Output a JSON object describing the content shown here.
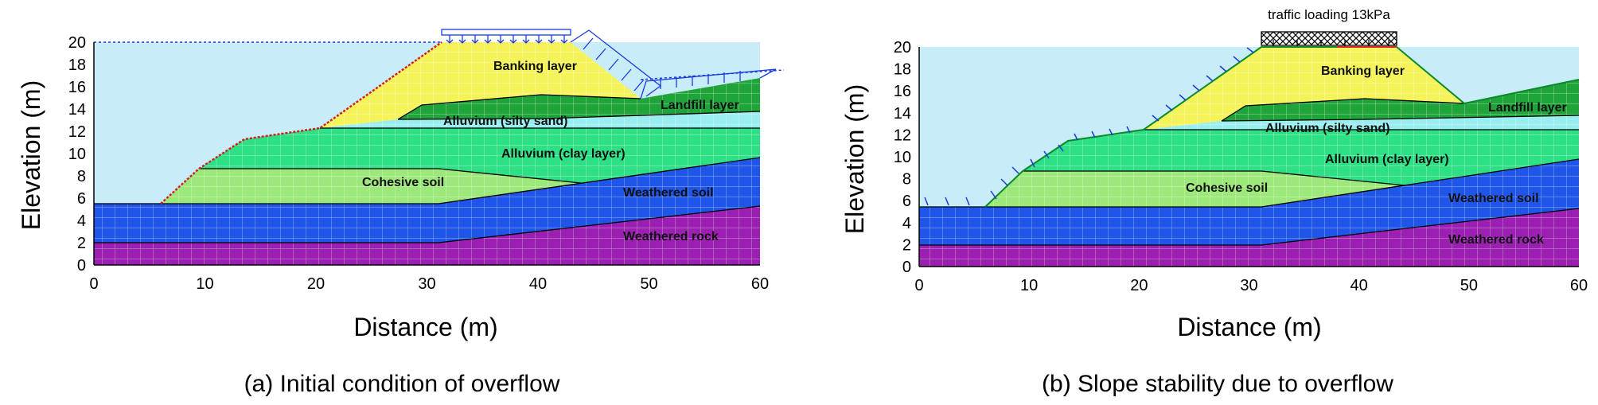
{
  "figure": {
    "panels": [
      {
        "id": "a",
        "caption": "(a) Initial condition of overflow",
        "xlabel": "Distance (m)",
        "ylabel": "Elevation (m)",
        "x_ticks": [
          "0",
          "10",
          "20",
          "30",
          "40",
          "50",
          "60"
        ],
        "y_ticks": [
          "0",
          "2",
          "4",
          "6",
          "8",
          "10",
          "12",
          "14",
          "16",
          "18",
          "20"
        ],
        "layers": [
          "Banking layer",
          "Landfill layer",
          "Alluvium (silty sand)",
          "Alluvium (clay layer)",
          "Cohesive soil",
          "Weathered soil",
          "Weathered rock"
        ]
      },
      {
        "id": "b",
        "caption": "(b) Slope stability due to overflow",
        "xlabel": "Distance (m)",
        "ylabel": "Elevation (m)",
        "x_ticks": [
          "0",
          "10",
          "20",
          "30",
          "40",
          "50",
          "60"
        ],
        "y_ticks": [
          "0",
          "2",
          "4",
          "6",
          "8",
          "10",
          "12",
          "14",
          "16",
          "18",
          "20"
        ],
        "layers": [
          "Banking layer",
          "Landfill layer",
          "Alluvium (silty sand)",
          "Alluvium (clay layer)",
          "Cohesive soil",
          "Weathered soil",
          "Weathered rock"
        ],
        "load_label": "traffic loading 13kPa"
      }
    ],
    "colors": {
      "water": "#c8ecf8",
      "banking": "#f4f45a",
      "landfill": "#1fa43a",
      "silty_sand": "#9beef0",
      "clay": "#2ee085",
      "cohesive": "#9de87a",
      "weathered_soil": "#1f55e8",
      "weathered_rock": "#9b1fb0",
      "water_line": "#1a3ae0",
      "surface_line": "#d02020"
    }
  }
}
